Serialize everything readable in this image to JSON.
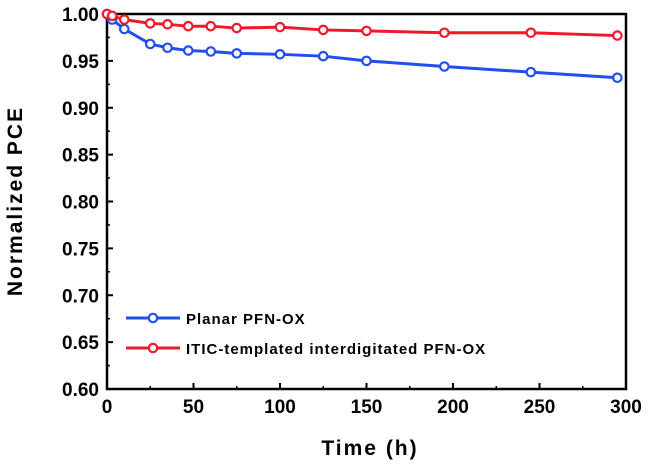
{
  "chart_data": {
    "type": "line",
    "xlabel": "Time (h)",
    "ylabel": "Normalized PCE",
    "xlim": [
      0,
      300
    ],
    "ylim": [
      0.6,
      1.0
    ],
    "xticks": [
      "0",
      "50",
      "100",
      "150",
      "200",
      "250",
      "300"
    ],
    "yticks": [
      "0.60",
      "0.65",
      "0.70",
      "0.75",
      "0.80",
      "0.85",
      "0.90",
      "0.95",
      "1.00"
    ],
    "grid": false,
    "legend_position": "bottom-left",
    "series": [
      {
        "name": "Planar PFN-OX",
        "color": "#1f4ff0",
        "x": [
          0,
          3,
          10,
          25,
          35,
          47,
          60,
          75,
          100,
          125,
          150,
          195,
          245,
          295
        ],
        "y": [
          1.0,
          0.994,
          0.984,
          0.968,
          0.964,
          0.961,
          0.96,
          0.958,
          0.957,
          0.955,
          0.95,
          0.944,
          0.938,
          0.932
        ]
      },
      {
        "name": "ITIC-templated interdigitated PFN-OX",
        "color": "#f0182a",
        "x": [
          0,
          3,
          10,
          25,
          35,
          47,
          60,
          75,
          100,
          125,
          150,
          195,
          245,
          295
        ],
        "y": [
          1.0,
          0.998,
          0.994,
          0.99,
          0.989,
          0.987,
          0.987,
          0.985,
          0.986,
          0.983,
          0.982,
          0.98,
          0.98,
          0.977
        ]
      }
    ]
  }
}
